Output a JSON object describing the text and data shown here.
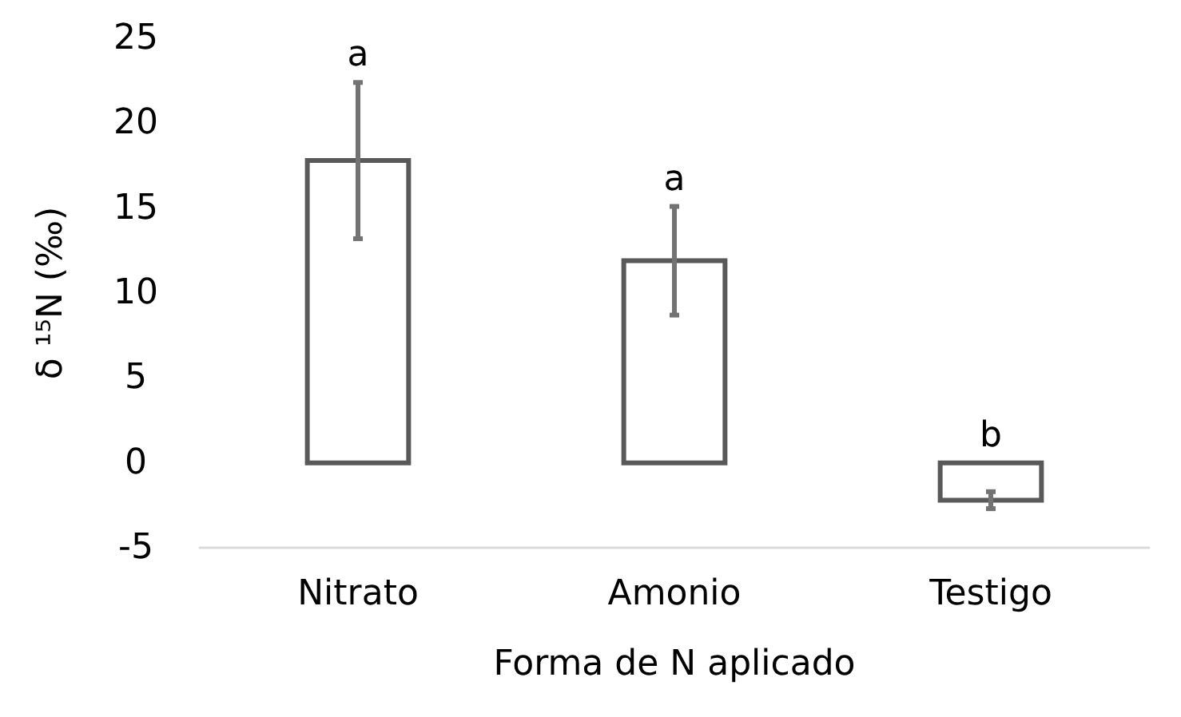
{
  "chart_data": {
    "type": "bar",
    "xlabel": "Forma de N aplicado",
    "ylabel": "δ ¹⁵N (‰)",
    "categories": [
      "Nitrato",
      "Amonio",
      "Testigo"
    ],
    "series": [
      {
        "color": "#595959",
        "values": [
          17.8,
          11.9,
          -2.2
        ],
        "errors": [
          4.6,
          3.2,
          0.5
        ]
      }
    ],
    "ylim": [
      -5,
      25
    ],
    "yticks": [
      -5,
      0,
      5,
      10,
      15,
      20,
      25
    ],
    "grid": false,
    "annotations": [
      {
        "text": "a",
        "x": "Nitrato",
        "y": 22.4
      },
      {
        "text": "a",
        "x": "Amonio",
        "y": 15.1
      },
      {
        "text": "b",
        "x": "Testigo",
        "y": 0
      }
    ]
  }
}
